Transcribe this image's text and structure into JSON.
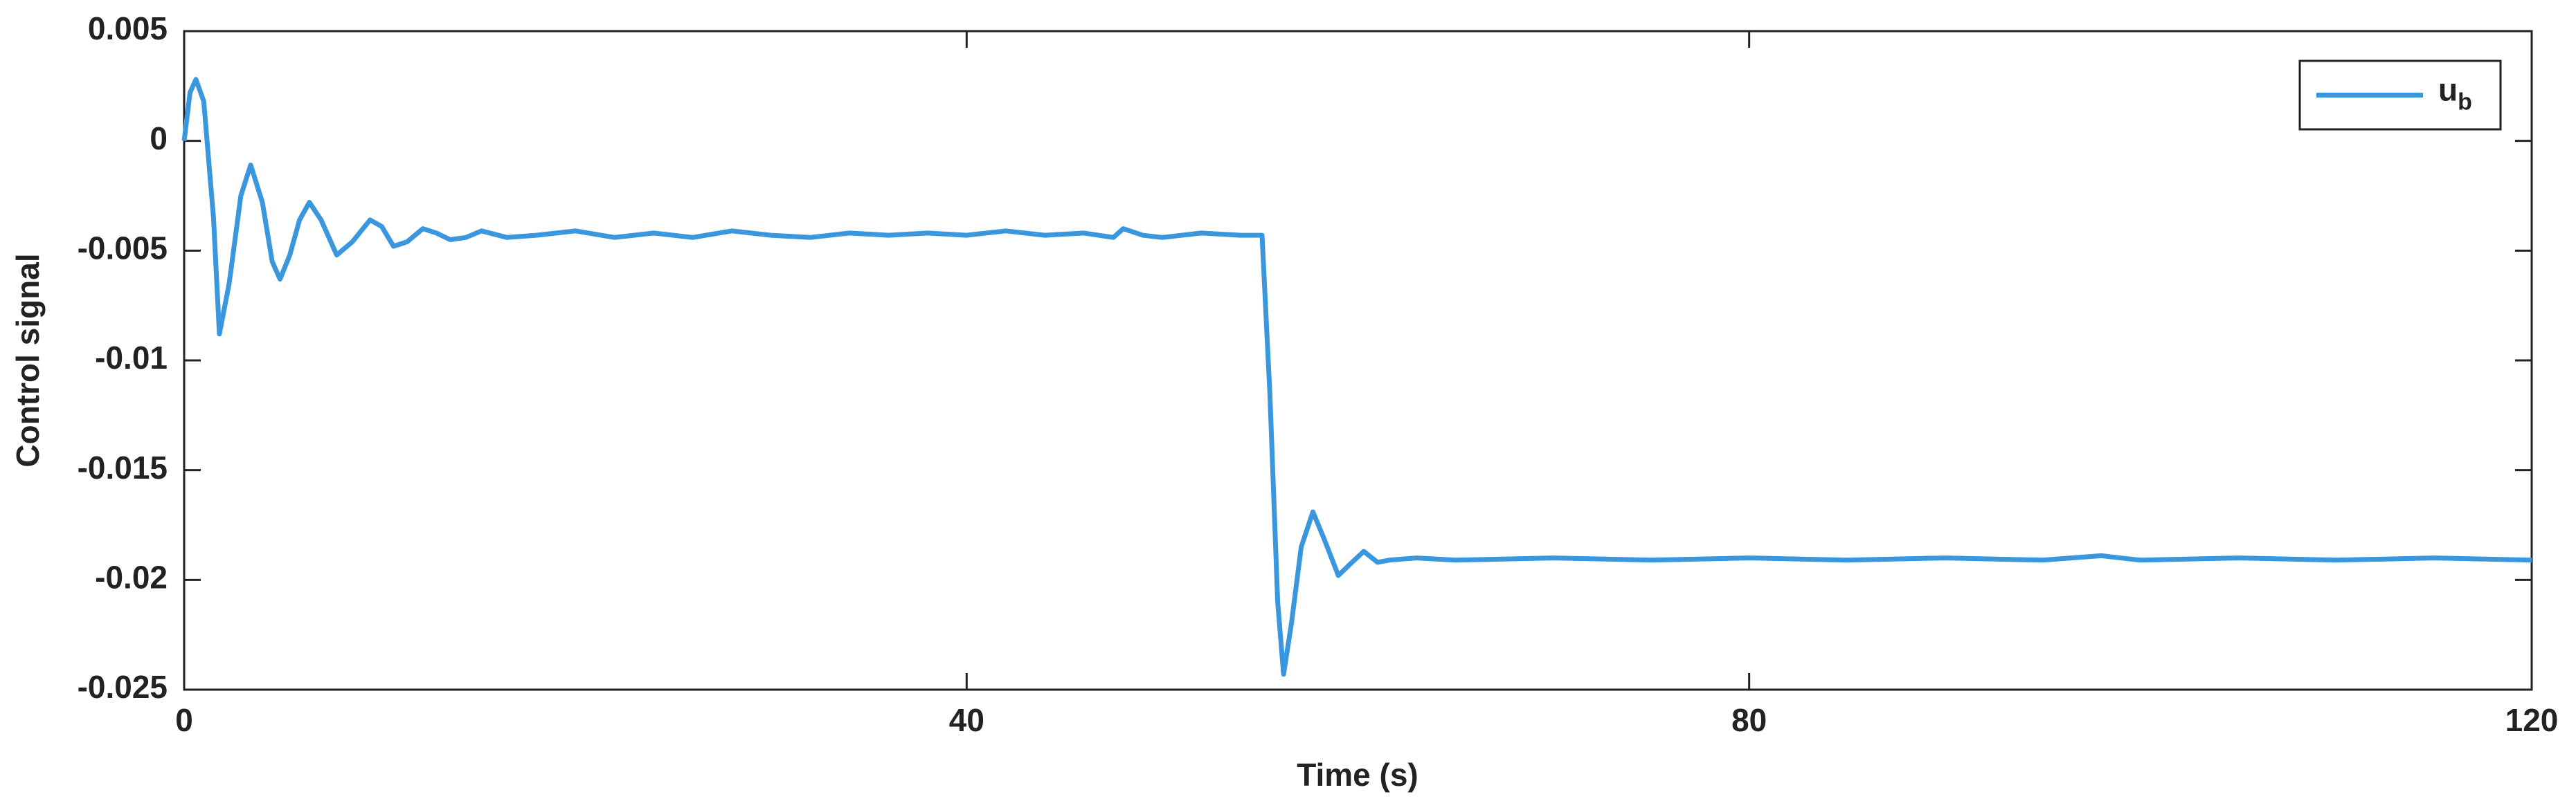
{
  "chart_data": {
    "type": "line",
    "x_label": "Time (s)",
    "y_label": "Control signal",
    "xlim": [
      0,
      120
    ],
    "xticks": [
      0,
      40,
      80,
      120
    ],
    "ylim": [
      -0.025,
      0.005
    ],
    "yticks": [
      -0.025,
      -0.02,
      -0.015,
      -0.01,
      -0.005,
      0,
      0.005
    ],
    "grid": false,
    "legend": "upper right",
    "series": [
      {
        "name": "u",
        "subscript": "b",
        "color": "#3a96dd",
        "x": [
          0,
          0.3,
          0.6,
          1.0,
          1.5,
          1.8,
          2.3,
          2.9,
          3.4,
          4.0,
          4.5,
          4.9,
          5.4,
          5.9,
          6.4,
          7.0,
          7.8,
          8.6,
          9.5,
          10.1,
          10.7,
          11.4,
          12.2,
          12.9,
          13.6,
          14.4,
          15.2,
          16.5,
          18,
          20,
          22,
          24,
          26,
          28,
          30,
          32,
          34,
          36,
          38,
          40,
          42,
          44,
          46,
          47.5,
          48,
          49,
          50,
          52,
          54,
          55.1,
          55.5,
          55.9,
          56.2,
          56.6,
          57.1,
          57.7,
          58.3,
          59.0,
          59.7,
          60.3,
          61.0,
          61.6,
          63,
          65,
          70,
          75,
          80,
          85,
          90,
          95,
          98,
          100,
          105,
          110,
          115,
          120
        ],
        "values": [
          0,
          0.0022,
          0.0028,
          0.0018,
          -0.0035,
          -0.0088,
          -0.0065,
          -0.0025,
          -0.0011,
          -0.0028,
          -0.0055,
          -0.0063,
          -0.0052,
          -0.0036,
          -0.0028,
          -0.0036,
          -0.0052,
          -0.0046,
          -0.0036,
          -0.0039,
          -0.0048,
          -0.0046,
          -0.004,
          -0.0042,
          -0.0045,
          -0.0044,
          -0.0041,
          -0.0044,
          -0.0043,
          -0.0041,
          -0.0044,
          -0.0042,
          -0.0044,
          -0.0041,
          -0.0043,
          -0.0044,
          -0.0042,
          -0.0043,
          -0.0042,
          -0.0043,
          -0.0041,
          -0.0043,
          -0.0042,
          -0.0044,
          -0.004,
          -0.0043,
          -0.0044,
          -0.0042,
          -0.0043,
          -0.0043,
          -0.0115,
          -0.021,
          -0.0243,
          -0.022,
          -0.0185,
          -0.0169,
          -0.0182,
          -0.0198,
          -0.0192,
          -0.0187,
          -0.0192,
          -0.0191,
          -0.019,
          -0.0191,
          -0.019,
          -0.0191,
          -0.019,
          -0.0191,
          -0.019,
          -0.0191,
          -0.0189,
          -0.0191,
          -0.019,
          -0.0191,
          -0.019,
          -0.0191
        ]
      }
    ]
  }
}
